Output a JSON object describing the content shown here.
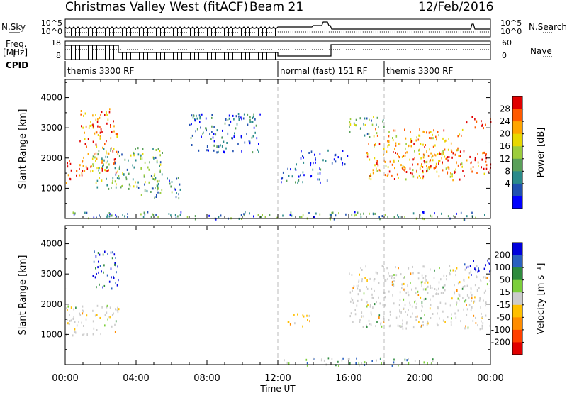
{
  "header": {
    "station": "Christmas Valley West (fitACF)",
    "beam": "Beam 21",
    "date": "12/Feb/2016"
  },
  "info_panel": {
    "nsky_label": "N.Sky",
    "nsky_ticks": [
      "10^5",
      "10^0"
    ],
    "nsearch_label": "N.Search",
    "nsearch_ticks": [
      "10^5",
      "10^0"
    ],
    "freq_label": "Freq.",
    "freq_unit": "[MHz]",
    "freq_ticks": [
      "18",
      "8"
    ],
    "nave_label": "Nave",
    "nave_ticks": [
      "60",
      "0"
    ],
    "cpid_label": "CPID",
    "cpid_segments": [
      {
        "label": "themis 3300 RF",
        "start_h": 0,
        "end_h": 12
      },
      {
        "label": "normal (fast) 151 RF",
        "start_h": 12,
        "end_h": 18
      },
      {
        "label": "themis 3300 RF",
        "start_h": 18,
        "end_h": 24
      }
    ]
  },
  "chart_data": [
    {
      "type": "heatmap",
      "panel": "power",
      "xlabel": "Time UT",
      "ylabel": "Slant Range [km]",
      "xlim": [
        0,
        24
      ],
      "ylim": [
        0,
        4600
      ],
      "yticks": [
        1000,
        2000,
        3000,
        4000
      ],
      "colorbar_label": "Power [dB]",
      "colorbar_ticks": [
        "28",
        "24",
        "20",
        "16",
        "12",
        "8",
        "4"
      ],
      "colorbar_colors": [
        "#e00000",
        "#ff5a00",
        "#ffa500",
        "#e8d800",
        "#9ccd3c",
        "#5aa05a",
        "#2a8a8a",
        "#2050b0",
        "#0000ff"
      ],
      "scatter_regions": [
        {
          "t_start": 0.0,
          "t_end": 1.0,
          "r_start": 1200,
          "r_end": 2000,
          "level": 0.9
        },
        {
          "t_start": 0.8,
          "t_end": 3.0,
          "r_start": 1500,
          "r_end": 3700,
          "level": 0.8
        },
        {
          "t_start": 1.5,
          "t_end": 5.5,
          "r_start": 1000,
          "r_end": 2400,
          "level": 0.4
        },
        {
          "t_start": 4.0,
          "t_end": 6.5,
          "r_start": 700,
          "r_end": 1500,
          "level": 0.3
        },
        {
          "t_start": 7.0,
          "t_end": 11.0,
          "r_start": 2200,
          "r_end": 3500,
          "level": 0.2
        },
        {
          "t_start": 12.0,
          "t_end": 14.8,
          "r_start": 1200,
          "r_end": 1700,
          "level": 0.2
        },
        {
          "t_start": 13.0,
          "t_end": 16.0,
          "r_start": 1800,
          "r_end": 2300,
          "level": 0.1
        },
        {
          "t_start": 16.0,
          "t_end": 18.0,
          "r_start": 2700,
          "r_end": 3400,
          "level": 0.4
        },
        {
          "t_start": 17.0,
          "t_end": 22.5,
          "r_start": 1300,
          "r_end": 3000,
          "level": 0.7
        },
        {
          "t_start": 19.0,
          "t_end": 24.0,
          "r_start": 1500,
          "r_end": 2300,
          "level": 0.85
        },
        {
          "t_start": 22.5,
          "t_end": 24.0,
          "r_start": 3000,
          "r_end": 3400,
          "level": 0.95
        },
        {
          "t_start": 0.0,
          "t_end": 24.0,
          "r_start": 0,
          "r_end": 250,
          "level": 0.3
        }
      ]
    },
    {
      "type": "heatmap",
      "panel": "velocity",
      "xlabel": "Time UT",
      "ylabel": "Slant Range [km]",
      "xlim": [
        0,
        24
      ],
      "ylim": [
        0,
        4600
      ],
      "yticks": [
        1000,
        2000,
        3000,
        4000
      ],
      "xtick_labels": [
        "00:00",
        "04:00",
        "08:00",
        "12:00",
        "16:00",
        "20:00",
        "00:00"
      ],
      "colorbar_label": "Velocity [m s⁻¹]",
      "colorbar_ticks": [
        "200",
        "100",
        "50",
        "15",
        "-15",
        "-50",
        "-100",
        "-200"
      ],
      "colorbar_colors": [
        "#0000dc",
        "#2a60c0",
        "#2e8b3e",
        "#7ccf3a",
        "#cccccc",
        "#ffc000",
        "#ff8c00",
        "#ff4000",
        "#e00000"
      ],
      "scatter_regions": [
        {
          "t_start": 0.0,
          "t_end": 3.0,
          "r_start": 1000,
          "r_end": 2000,
          "level": 0.5
        },
        {
          "t_start": 1.5,
          "t_end": 3.0,
          "r_start": 2500,
          "r_end": 3800,
          "level": 0.9
        },
        {
          "t_start": 12.5,
          "t_end": 14.0,
          "r_start": 1300,
          "r_end": 1700,
          "level": 0.3
        },
        {
          "t_start": 16.0,
          "t_end": 24.0,
          "r_start": 1200,
          "r_end": 3300,
          "level": 0.5
        },
        {
          "t_start": 22.5,
          "t_end": 24.0,
          "r_start": 3000,
          "r_end": 3500,
          "level": 0.95
        },
        {
          "t_start": 12.0,
          "t_end": 21.0,
          "r_start": 0,
          "r_end": 250,
          "level": 0.65
        }
      ]
    }
  ]
}
